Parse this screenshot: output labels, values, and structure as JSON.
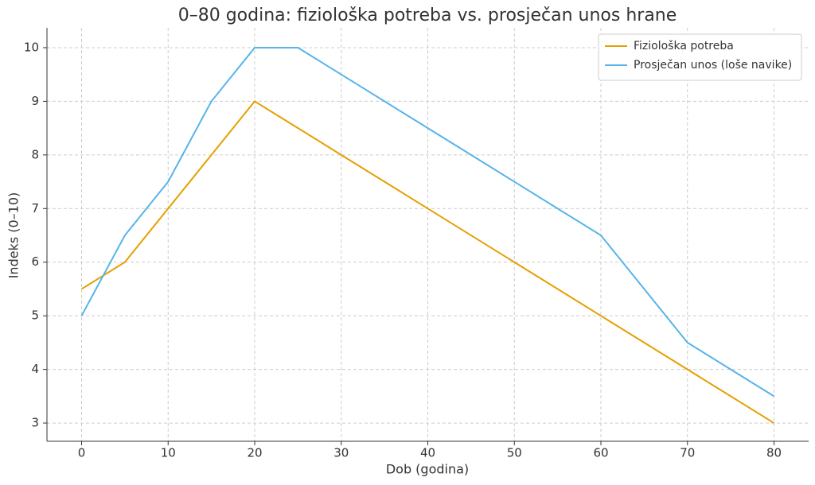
{
  "chart_data": {
    "type": "line",
    "title": "0–80 godina: fiziološka potreba vs. prosječan unos hrane",
    "x_label": "Dob (godina)",
    "y_label": "Indeks (0–10)",
    "x": [
      0,
      5,
      10,
      15,
      20,
      25,
      30,
      40,
      50,
      60,
      70,
      80
    ],
    "series": [
      {
        "name": "Fiziološka potreba",
        "color": "#e69f00",
        "values": [
          5.5,
          6,
          7,
          8,
          9,
          8.5,
          8,
          7,
          6,
          5,
          4,
          3
        ]
      },
      {
        "name": "Prosječan unos (loše navike)",
        "color": "#56b4e9",
        "values": [
          5,
          6.5,
          7.5,
          9,
          10,
          10,
          9.5,
          8.5,
          7.5,
          6.5,
          4.5,
          3.5
        ]
      }
    ],
    "xlim": [
      -4,
      84
    ],
    "ylim": [
      2.66,
      10.37
    ],
    "xticks": [
      0,
      10,
      20,
      30,
      40,
      50,
      60,
      70,
      80
    ],
    "yticks": [
      3,
      4,
      5,
      6,
      7,
      8,
      9,
      10
    ],
    "grid": true,
    "legend": "upper-right"
  }
}
